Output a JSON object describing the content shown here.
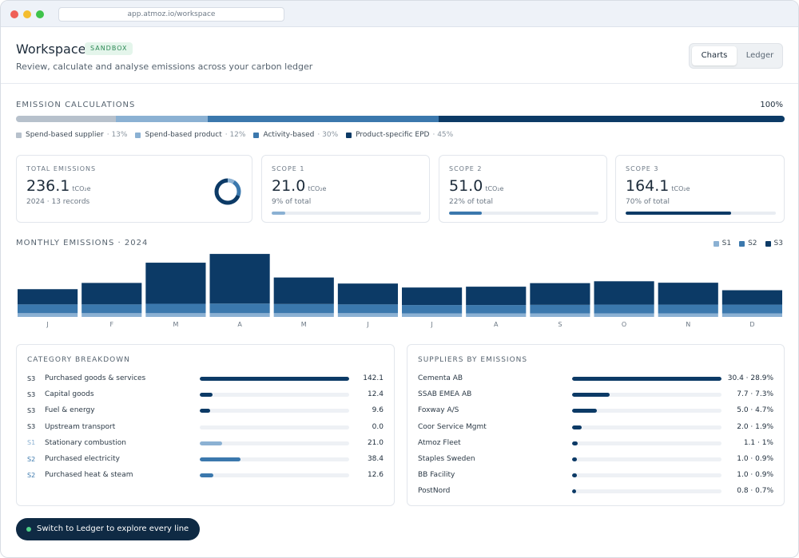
{
  "browser": {
    "url": "app.atmoz.io/workspace"
  },
  "header": {
    "title": "Workspace",
    "badge": "SANDBOX",
    "subtitle": "Review, calculate and analyse emissions across your carbon ledger",
    "toggle": {
      "charts": "Charts",
      "ledger": "Ledger",
      "active": "Charts"
    }
  },
  "emission_calculations": {
    "label": "EMISSION CALCULATIONS",
    "total_pct": "100%",
    "segments": [
      {
        "name": "Spend-based supplier",
        "pct_label": "· 13%",
        "value": 13,
        "color": "#b7c1cc"
      },
      {
        "name": "Spend-based product",
        "pct_label": "· 12%",
        "value": 12,
        "color": "#8bb1d3"
      },
      {
        "name": "Activity-based",
        "pct_label": "· 30%",
        "value": 30,
        "color": "#3b78ad"
      },
      {
        "name": "Product-specific EPD",
        "pct_label": "· 45%",
        "value": 45,
        "color": "#0c3a66"
      }
    ]
  },
  "cards": {
    "total": {
      "label": "TOTAL EMISSIONS",
      "value": "236.1",
      "unit": "tCO₂e",
      "sub": "2024 · 13 records"
    },
    "scope1": {
      "label": "SCOPE 1",
      "value": "21.0",
      "unit": "tCO₂e",
      "sub": "9% of total",
      "fraction": 0.09
    },
    "scope2": {
      "label": "SCOPE 2",
      "value": "51.0",
      "unit": "tCO₂e",
      "sub": "22% of total",
      "fraction": 0.22
    },
    "scope3": {
      "label": "SCOPE 3",
      "value": "164.1",
      "unit": "tCO₂e",
      "sub": "70% of total",
      "fraction": 0.7
    },
    "donut_shares": [
      0.09,
      0.22,
      0.7
    ]
  },
  "monthly": {
    "label": "MONTHLY EMISSIONS · 2024",
    "legend": [
      {
        "name": "S1",
        "color": "#8bb1d3"
      },
      {
        "name": "S2",
        "color": "#3b78ad"
      },
      {
        "name": "S3",
        "color": "#0c3a66"
      }
    ]
  },
  "chart_data": {
    "type": "bar",
    "stacked": true,
    "categories": [
      "J",
      "F",
      "M",
      "A",
      "M",
      "J",
      "J",
      "A",
      "S",
      "O",
      "N",
      "D"
    ],
    "series": [
      {
        "name": "S1",
        "values": [
          1.8,
          1.8,
          1.8,
          1.8,
          1.8,
          1.8,
          1.7,
          1.7,
          1.7,
          1.7,
          1.7,
          1.7
        ]
      },
      {
        "name": "S2",
        "values": [
          4.2,
          4.2,
          4.5,
          4.6,
          4.4,
          4.2,
          4.0,
          4.0,
          4.1,
          4.2,
          4.2,
          4.2
        ]
      },
      {
        "name": "S3",
        "values": [
          7.3,
          10.3,
          19.7,
          23.8,
          12.7,
          10.0,
          8.4,
          8.8,
          10.4,
          11.2,
          10.5,
          6.9
        ]
      }
    ],
    "ylim": [
      0,
      31
    ]
  },
  "category_breakdown": {
    "title": "CATEGORY BREAKDOWN",
    "max": 142.1,
    "rows": [
      {
        "tag": "S3",
        "name": "Purchased goods & services",
        "value": 142.1,
        "label": "142.1"
      },
      {
        "tag": "S3",
        "name": "Capital goods",
        "value": 12.4,
        "label": "12.4"
      },
      {
        "tag": "S3",
        "name": "Fuel & energy",
        "value": 9.6,
        "label": "9.6"
      },
      {
        "tag": "S3",
        "name": "Upstream transport",
        "value": 0.0,
        "label": "0.0"
      },
      {
        "tag": "S1",
        "name": "Stationary combustion",
        "value": 21.0,
        "label": "21.0"
      },
      {
        "tag": "S2",
        "name": "Purchased electricity",
        "value": 38.4,
        "label": "38.4"
      },
      {
        "tag": "S2",
        "name": "Purchased heat & steam",
        "value": 12.6,
        "label": "12.6"
      }
    ]
  },
  "suppliers": {
    "title": "SUPPLIERS BY EMISSIONS",
    "max": 30.4,
    "rows": [
      {
        "name": "Cementa AB",
        "value": 30.4,
        "label": "30.4 · 28.9%"
      },
      {
        "name": "SSAB EMEA AB",
        "value": 7.7,
        "label": "7.7 · 7.3%"
      },
      {
        "name": "Foxway A/S",
        "value": 5.0,
        "label": "5.0 · 4.7%"
      },
      {
        "name": "Coor Service Mgmt",
        "value": 2.0,
        "label": "2.0 · 1.9%"
      },
      {
        "name": "Atmoz Fleet",
        "value": 1.1,
        "label": "1.1 · 1%"
      },
      {
        "name": "Staples Sweden",
        "value": 1.0,
        "label": "1.0 · 0.9%"
      },
      {
        "name": "BB Facility",
        "value": 1.0,
        "label": "1.0 · 0.9%"
      },
      {
        "name": "PostNord",
        "value": 0.8,
        "label": "0.8 · 0.7%"
      }
    ]
  },
  "cta": {
    "label": "Switch to Ledger to explore every line"
  },
  "colors": {
    "s1": "#8bb1d3",
    "s2": "#3b78ad",
    "s3": "#0c3a66",
    "navy": "#0f2a44",
    "track": "#eef1f5"
  },
  "icons": {
    "cta_dot": "status-dot-icon"
  }
}
